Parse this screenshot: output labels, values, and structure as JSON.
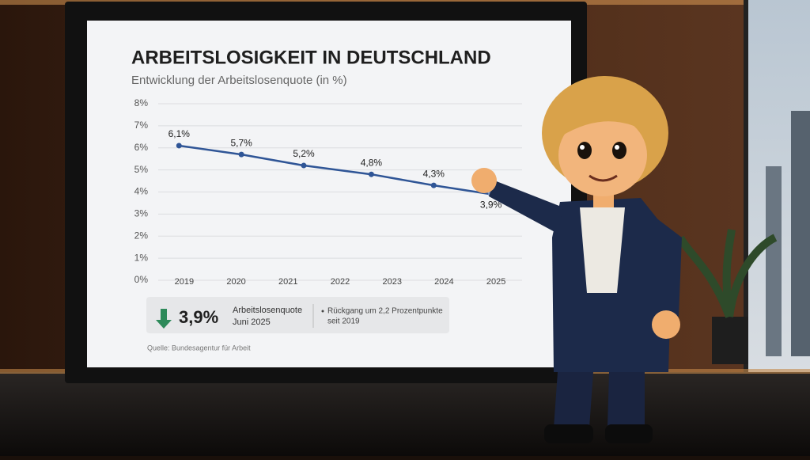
{
  "chart_data": {
    "type": "line",
    "title": "ARBEITSLOSIGKEIT IN DEUTSCHLAND",
    "subtitle": "Entwicklung der Arbeitslosenquote (in %)",
    "x": [
      2018.9,
      2020.1,
      2021.3,
      2022.6,
      2023.8,
      2024.9
    ],
    "values": [
      6.1,
      5.7,
      5.2,
      4.8,
      4.3,
      3.9
    ],
    "value_labels": [
      "6,1%",
      "5,7%",
      "5,2%",
      "4,8%",
      "4,3%",
      "3,9%"
    ],
    "color": "#2f5596",
    "xlim": [
      2018.5,
      2025.5
    ],
    "xticks": [
      2019,
      2020,
      2021,
      2022,
      2023,
      2024,
      2025
    ],
    "ylim": [
      0,
      8
    ],
    "yticks": [
      {
        "value": 0,
        "label": "0%"
      },
      {
        "value": 1,
        "label": "1%"
      },
      {
        "value": 2,
        "label": "2%"
      },
      {
        "value": 3,
        "label": "3%"
      },
      {
        "value": 4,
        "label": "4%"
      },
      {
        "value": 5,
        "label": "5%"
      },
      {
        "value": 6,
        "label": "6%"
      },
      {
        "value": 7,
        "label": "7%"
      },
      {
        "value": 8,
        "label": "8%"
      }
    ],
    "grid": true
  },
  "summary": {
    "value": "3,9%",
    "label": "Arbeitslosenquote",
    "date": "Juni 2025",
    "note_lines": [
      "Rückgang um 2,2 Prozentpunkte",
      "seit 2019"
    ]
  },
  "source": "Quelle: Bundesagentur für Arbeit"
}
